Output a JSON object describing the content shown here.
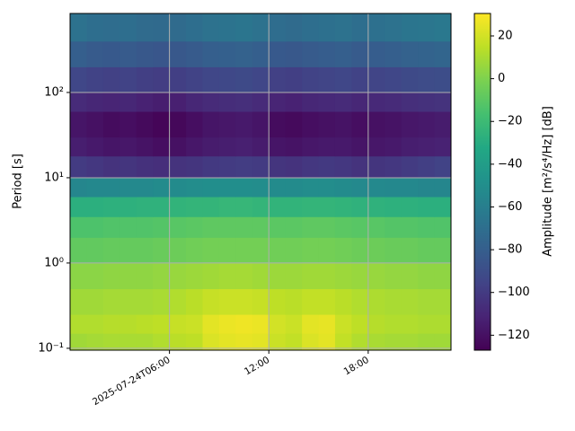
{
  "chart_data": {
    "type": "heatmap",
    "ylabel": "Period [s]",
    "colorbar_label": "Amplitude [m²/s⁴/Hz] [dB]",
    "colormap": "viridis",
    "yscale": "log",
    "grid": true,
    "xbins": [
      0,
      1,
      2,
      3,
      4,
      5,
      6,
      7,
      8,
      9,
      10,
      11,
      12,
      13,
      14,
      15,
      16,
      17,
      18,
      19,
      20,
      21,
      22,
      23
    ],
    "ybins": [
      0.095,
      0.15,
      0.25,
      0.5,
      1,
      2,
      3.5,
      6,
      10,
      18,
      30,
      60,
      100,
      200,
      400,
      844
    ],
    "xlim": [
      0,
      23
    ],
    "ylim": [
      0.095,
      844
    ],
    "clim": [
      -127,
      30.5
    ],
    "xticks": [
      {
        "value": 6,
        "label": "2025-07-24T06:00"
      },
      {
        "value": 12,
        "label": "12:00"
      },
      {
        "value": 18,
        "label": "18:00"
      }
    ],
    "yticks": [
      {
        "value": 0.1,
        "label": "10⁻¹"
      },
      {
        "value": 1,
        "label": "10⁰"
      },
      {
        "value": 10,
        "label": "10¹"
      },
      {
        "value": 100,
        "label": "10²"
      }
    ],
    "cticks": [
      20,
      0,
      {
        "value": -20,
        "label": "−20"
      },
      {
        "value": -40,
        "label": "−40"
      },
      {
        "value": -60,
        "label": "−60"
      },
      {
        "value": -80,
        "label": "−80"
      },
      {
        "value": -100,
        "label": "−100"
      },
      {
        "value": -120,
        "label": "−120"
      }
    ],
    "values": [
      [
        8,
        9,
        10,
        10,
        10,
        12,
        14,
        15,
        22,
        24,
        25,
        24,
        18,
        16,
        22,
        24,
        16,
        12,
        10,
        9,
        9,
        8,
        8
      ],
      [
        12,
        12,
        13,
        13,
        14,
        15,
        17,
        18,
        24,
        26,
        27,
        26,
        20,
        18,
        24,
        25,
        18,
        15,
        13,
        12,
        12,
        11,
        11
      ],
      [
        8,
        8,
        9,
        9,
        9,
        10,
        12,
        14,
        17,
        18,
        18,
        17,
        15,
        14,
        16,
        16,
        14,
        12,
        11,
        10,
        10,
        9,
        9
      ],
      [
        3,
        3,
        4,
        4,
        4,
        5,
        6,
        7,
        8,
        9,
        9,
        8,
        7,
        7,
        8,
        8,
        7,
        6,
        6,
        5,
        5,
        4,
        4
      ],
      [
        -8,
        -8,
        -7,
        -7,
        -7,
        -6,
        -5,
        -4,
        -3,
        -3,
        -3,
        -3,
        -4,
        -4,
        -3,
        -3,
        -4,
        -5,
        -5,
        -6,
        -6,
        -7,
        -7
      ],
      [
        -14,
        -14,
        -13,
        -13,
        -13,
        -12,
        -11,
        -10,
        -9,
        -9,
        -9,
        -9,
        -10,
        -10,
        -9,
        -9,
        -10,
        -11,
        -11,
        -12,
        -12,
        -13,
        -13
      ],
      [
        -28,
        -28,
        -27,
        -27,
        -26,
        -26,
        -25,
        -24,
        -24,
        -23,
        -23,
        -24,
        -25,
        -25,
        -24,
        -24,
        -25,
        -26,
        -26,
        -27,
        -27,
        -28,
        -28
      ],
      [
        -55,
        -54,
        -54,
        -53,
        -53,
        -52,
        -52,
        -51,
        -50,
        -50,
        -50,
        -51,
        -52,
        -52,
        -51,
        -51,
        -52,
        -53,
        -53,
        -54,
        -54,
        -55,
        -55
      ],
      [
        -100,
        -102,
        -104,
        -103,
        -105,
        -106,
        -104,
        -103,
        -101,
        -100,
        -99,
        -100,
        -103,
        -104,
        -102,
        -101,
        -102,
        -104,
        -103,
        -102,
        -100,
        -98,
        -96
      ],
      [
        -114,
        -116,
        -118,
        -117,
        -119,
        -121,
        -120,
        -117,
        -115,
        -114,
        -113,
        -115,
        -118,
        -119,
        -117,
        -116,
        -116,
        -118,
        -117,
        -116,
        -114,
        -113,
        -112
      ],
      [
        -118,
        -120,
        -122,
        -121,
        -123,
        -125,
        -124,
        -121,
        -118,
        -117,
        -116,
        -118,
        -122,
        -123,
        -121,
        -120,
        -119,
        -121,
        -120,
        -119,
        -117,
        -116,
        -115
      ],
      [
        -108,
        -110,
        -111,
        -110,
        -112,
        -114,
        -113,
        -110,
        -108,
        -107,
        -106,
        -108,
        -111,
        -112,
        -110,
        -109,
        -108,
        -110,
        -109,
        -108,
        -106,
        -105,
        -104
      ],
      [
        -94,
        -96,
        -97,
        -96,
        -98,
        -99,
        -98,
        -96,
        -94,
        -93,
        -92,
        -94,
        -97,
        -98,
        -96,
        -95,
        -94,
        -96,
        -95,
        -94,
        -92,
        -91,
        -90
      ],
      [
        -80,
        -82,
        -83,
        -82,
        -84,
        -85,
        -84,
        -82,
        -80,
        -79,
        -78,
        -80,
        -83,
        -84,
        -82,
        -81,
        -80,
        -82,
        -81,
        -80,
        -78,
        -77,
        -76
      ],
      [
        -68,
        -70,
        -71,
        -70,
        -72,
        -73,
        -72,
        -70,
        -68,
        -67,
        -66,
        -68,
        -71,
        -72,
        -70,
        -69,
        -68,
        -70,
        -69,
        -68,
        -66,
        -65,
        -64
      ]
    ]
  }
}
